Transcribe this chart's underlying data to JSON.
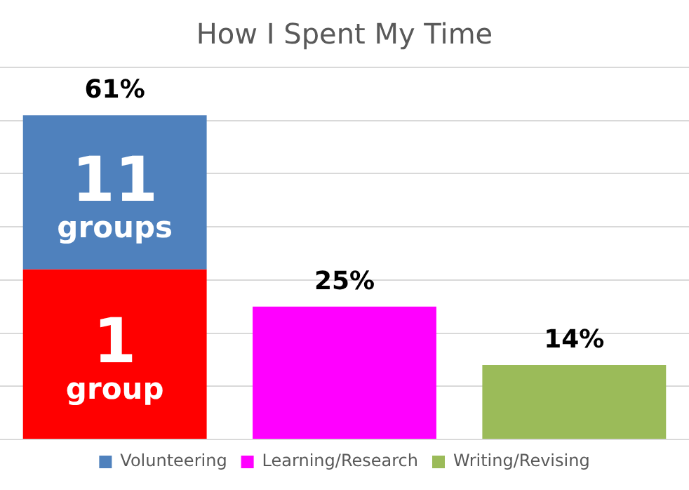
{
  "chart_data": {
    "type": "bar",
    "title": "How I Spent My Time",
    "categories": [
      null,
      null,
      null
    ],
    "stacked": true,
    "series": [
      {
        "color": "#ff0000",
        "values": [
          32,
          null,
          null
        ]
      },
      {
        "name": "Volunteering",
        "color": "#4f81bd",
        "values": [
          29,
          null,
          null
        ]
      },
      {
        "name": "Learning/Research",
        "color": "#ff00ff",
        "values": [
          null,
          25,
          null
        ],
        "value_labels": [
          null,
          "25%",
          null
        ]
      },
      {
        "name": "Writing/Revising",
        "color": "#9bbb59",
        "values": [
          null,
          null,
          14
        ],
        "value_labels": [
          null,
          null,
          "14%"
        ]
      }
    ],
    "totals": [
      "61%",
      null,
      null
    ],
    "annotations": [
      "1 group",
      "11 groups"
    ],
    "grid": "y",
    "legend": "bottom"
  }
}
